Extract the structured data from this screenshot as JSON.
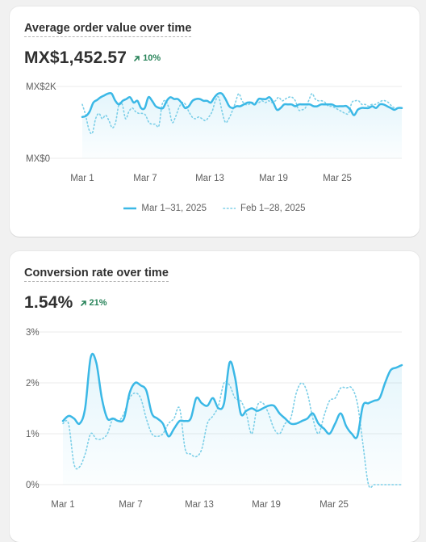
{
  "aov": {
    "title": "Average order value over time",
    "value": "MX$1,452.57",
    "delta": "10%",
    "legend": [
      "Mar 1–31, 2025",
      "Feb 1–28, 2025"
    ]
  },
  "conversion": {
    "title": "Conversion rate over time",
    "value": "1.54%",
    "delta": "21%"
  },
  "colors": {
    "primary": "#3bb8e6",
    "comparison": "#7ccfe8",
    "positive": "#29845a",
    "grid": "#ebebeb"
  },
  "icons": {
    "delta": "arrow-up-right-icon"
  },
  "chart_data": [
    {
      "type": "line",
      "title": "Average order value over time",
      "y_ticks": [
        "MX$2K",
        "MX$0"
      ],
      "ylim": [
        0,
        2000
      ],
      "x_ticks": [
        "Mar 1",
        "Mar 7",
        "Mar 13",
        "Mar 19",
        "Mar 25"
      ],
      "legend_position": "bottom",
      "grid": true,
      "series": [
        {
          "name": "Mar 1–31, 2025",
          "style": "solid",
          "values": [
            1150,
            1180,
            1300,
            1550,
            1620,
            1700,
            1750,
            1800,
            1800,
            1600,
            1500,
            1600,
            1650,
            1700,
            1550,
            1600,
            1400,
            1400,
            1700,
            1600,
            1450,
            1400,
            1400,
            1600,
            1700,
            1650,
            1650,
            1550,
            1400,
            1450,
            1600,
            1650,
            1650,
            1600,
            1600,
            1550,
            1700,
            1800,
            1800,
            1650,
            1450,
            1400,
            1450,
            1450,
            1500,
            1550,
            1550,
            1500,
            1650,
            1650,
            1650,
            1700,
            1550,
            1350,
            1400,
            1500,
            1500,
            1500,
            1450,
            1500,
            1500,
            1500,
            1500,
            1450,
            1450,
            1500,
            1500,
            1500,
            1500,
            1450,
            1450,
            1450,
            1450,
            1350,
            1200,
            1350,
            1400,
            1400,
            1400,
            1450,
            1400,
            1500,
            1500,
            1450,
            1400,
            1350,
            1400,
            1400
          ]
        },
        {
          "name": "Feb 1–28, 2025",
          "style": "dotted",
          "values": [
            1500,
            1200,
            800,
            700,
            1100,
            1250,
            1100,
            1200,
            1050,
            850,
            1000,
            1500,
            1500,
            1100,
            1300,
            1400,
            1300,
            1250,
            1250,
            1200,
            1000,
            950,
            950,
            900,
            1500,
            1600,
            1400,
            1000,
            1150,
            1400,
            1550,
            1500,
            1300,
            1150,
            1100,
            1150,
            1100,
            1050,
            1150,
            1300,
            1600,
            1700,
            1300,
            1000,
            1100,
            1300,
            1550,
            1800,
            1600,
            1500,
            1500,
            1550,
            1550,
            1550,
            1600,
            1550,
            1600,
            1550,
            1600,
            1700,
            1600,
            1650,
            1700,
            1700,
            1600,
            1350,
            1350,
            1400,
            1600,
            1800,
            1650,
            1600,
            1600,
            1550,
            1450,
            1450,
            1400,
            1350,
            1300,
            1250,
            1250,
            1550,
            1600,
            1600,
            1500,
            1500,
            1450,
            1500,
            1500,
            1550,
            1600,
            1600,
            1550,
            1450,
            1400,
            1400,
            1400
          ]
        }
      ]
    },
    {
      "type": "line",
      "title": "Conversion rate over time",
      "y_ticks": [
        "3%",
        "2%",
        "1%",
        "0%"
      ],
      "ylim": [
        0,
        3
      ],
      "x_ticks": [
        "Mar 1",
        "Mar 7",
        "Mar 13",
        "Mar 19",
        "Mar 25"
      ],
      "grid": true,
      "series": [
        {
          "name": "Mar 1–31, 2025",
          "style": "solid",
          "values": [
            1.25,
            1.35,
            1.3,
            1.2,
            1.5,
            2.5,
            2.4,
            1.7,
            1.3,
            1.3,
            1.25,
            1.3,
            1.8,
            2.0,
            1.95,
            1.85,
            1.4,
            1.3,
            1.2,
            0.95,
            1.1,
            1.25,
            1.25,
            1.3,
            1.7,
            1.6,
            1.55,
            1.7,
            1.5,
            1.6,
            2.4,
            2.1,
            1.4,
            1.45,
            1.5,
            1.45,
            1.5,
            1.55,
            1.55,
            1.4,
            1.3,
            1.2,
            1.2,
            1.25,
            1.3,
            1.4,
            1.2,
            1.1,
            1.0,
            1.2,
            1.4,
            1.15,
            1.0,
            0.95,
            1.55,
            1.6,
            1.65,
            1.7,
            2.0,
            2.25,
            2.3,
            2.35
          ]
        },
        {
          "name": "Feb 1–28, 2025",
          "style": "dotted",
          "values": [
            1.2,
            1.2,
            0.4,
            0.35,
            0.6,
            1.0,
            0.9,
            0.9,
            1.0,
            1.3,
            1.25,
            1.4,
            1.7,
            1.8,
            1.7,
            1.3,
            1.0,
            0.95,
            1.0,
            1.2,
            1.3,
            1.5,
            0.7,
            0.6,
            0.55,
            0.7,
            1.2,
            1.35,
            1.55,
            2.0,
            1.95,
            1.7,
            1.65,
            1.4,
            1.0,
            1.55,
            1.6,
            1.4,
            1.1,
            1.0,
            1.2,
            1.3,
            1.8,
            2.0,
            1.8,
            1.3,
            1.0,
            1.35,
            1.65,
            1.7,
            1.9,
            1.9,
            1.9,
            1.6,
            0.8,
            0.0,
            0.0,
            0.0,
            0.0,
            0.0,
            0.0,
            0.0
          ]
        }
      ]
    }
  ]
}
